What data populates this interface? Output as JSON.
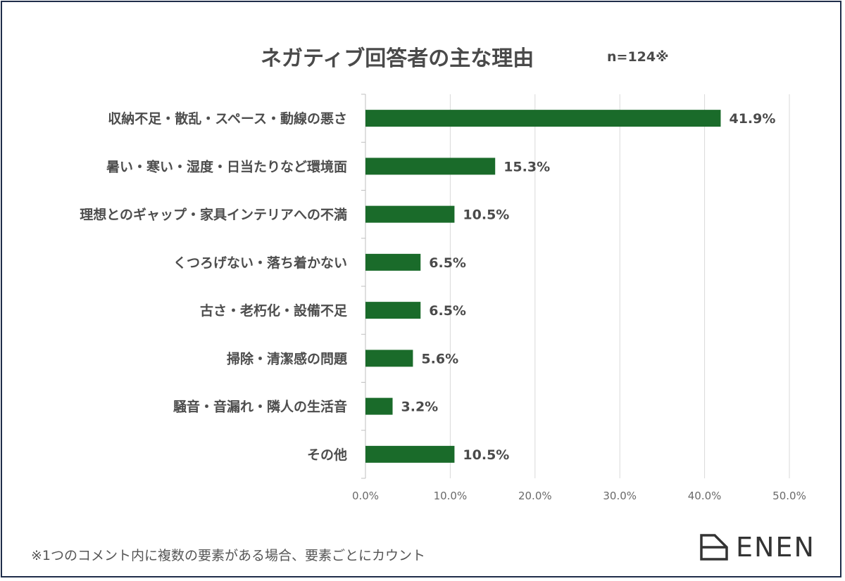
{
  "title": "ネガティブ回答者の主な理由",
  "sample_note": "n=124※",
  "footnote": "※1つのコメント内に複数の要素がある場合、要素ごとにカウント",
  "logo": {
    "text": "ENEN",
    "icon": "house-outline-icon"
  },
  "colors": {
    "bar": "#1a6b2a",
    "grid": "#d9d9d9",
    "frame": "#1f2d4a"
  },
  "chart_data": {
    "type": "bar",
    "orientation": "horizontal",
    "title": "ネガティブ回答者の主な理由",
    "categories": [
      "収納不足・散乱・スペース・動線の悪さ",
      "暑い・寒い・湿度・日当たりなど環境面",
      "理想とのギャップ・家具インテリアへの不満",
      "くつろげない・落ち着かない",
      "古さ・老朽化・設備不足",
      "掃除・清潔感の問題",
      "騒音・音漏れ・隣人の生活音",
      "その他"
    ],
    "values": [
      41.9,
      15.3,
      10.5,
      6.5,
      6.5,
      5.6,
      3.2,
      10.5
    ],
    "value_labels": [
      "41.9%",
      "15.3%",
      "10.5%",
      "6.5%",
      "6.5%",
      "5.6%",
      "3.2%",
      "10.5%"
    ],
    "xlim": [
      0,
      50
    ],
    "xticks": [
      0,
      10,
      20,
      30,
      40,
      50
    ],
    "xtick_labels": [
      "0.0%",
      "10.0%",
      "20.0%",
      "30.0%",
      "40.0%",
      "50.0%"
    ],
    "xlabel": "",
    "ylabel": "",
    "grid": true,
    "legend": "none"
  }
}
